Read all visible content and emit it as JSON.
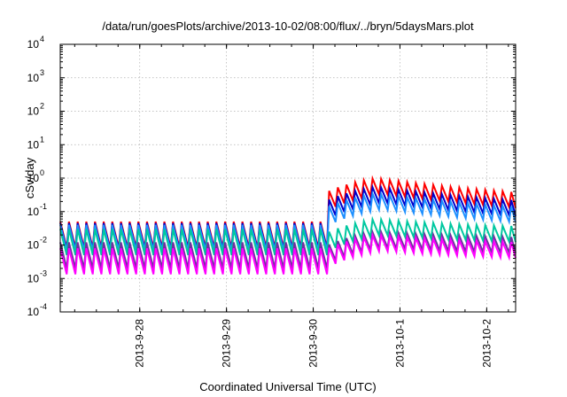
{
  "chart_data": {
    "type": "line",
    "title": "/data/run/goesPlots/archive/2013-10-02/08:00/flux/../bryn/5daysMars.plot",
    "xlabel": "Coordinated Universal Time (UTC)",
    "ylabel": "cSv/day",
    "yscale": "log",
    "ylim_exponents": [
      -4,
      4
    ],
    "y_ticks": [
      {
        "base": "10",
        "exp": "-4"
      },
      {
        "base": "10",
        "exp": "-3"
      },
      {
        "base": "10",
        "exp": "-2"
      },
      {
        "base": "10",
        "exp": "-1"
      },
      {
        "base": "10",
        "exp": "0"
      },
      {
        "base": "10",
        "exp": "1"
      },
      {
        "base": "10",
        "exp": "2"
      },
      {
        "base": "10",
        "exp": "3"
      },
      {
        "base": "10",
        "exp": "4"
      }
    ],
    "x_range_days": [
      "2013-09-27T02:00",
      "2013-10-02T08:00"
    ],
    "x_ticks": [
      "2013-9-28",
      "2013-9-29",
      "2013-9-30",
      "2013-10-1",
      "2013-10-2"
    ],
    "x_tick_dates": [
      "2013-09-28T00:00",
      "2013-09-29T00:00",
      "2013-09-30T00:00",
      "2013-10-01T00:00",
      "2013-10-02T00:00"
    ],
    "grid": true,
    "legend": "none",
    "event_onset": "2013-09-30T03:00",
    "sawtooth_period_hours": 2.4,
    "series": [
      {
        "color": "#ff0000",
        "quiet_level": 0.05,
        "event_peak": 1.0,
        "event_decay_floor": 0.2
      },
      {
        "color": "#0000cc",
        "quiet_level": 0.045,
        "event_peak": 0.55,
        "event_decay_floor": 0.12
      },
      {
        "color": "#1e90ff",
        "quiet_level": 0.04,
        "event_peak": 0.35,
        "event_decay_floor": 0.08
      },
      {
        "color": "#00c8a0",
        "quiet_level": 0.03,
        "event_peak": 0.06,
        "event_decay_floor": 0.03
      },
      {
        "color": "#7030a0",
        "quiet_level": 0.012,
        "event_peak": 0.025,
        "event_decay_floor": 0.015
      },
      {
        "color": "#ff00ff",
        "quiet_level": 0.008,
        "event_peak": 0.02,
        "event_decay_floor": 0.01
      }
    ]
  }
}
